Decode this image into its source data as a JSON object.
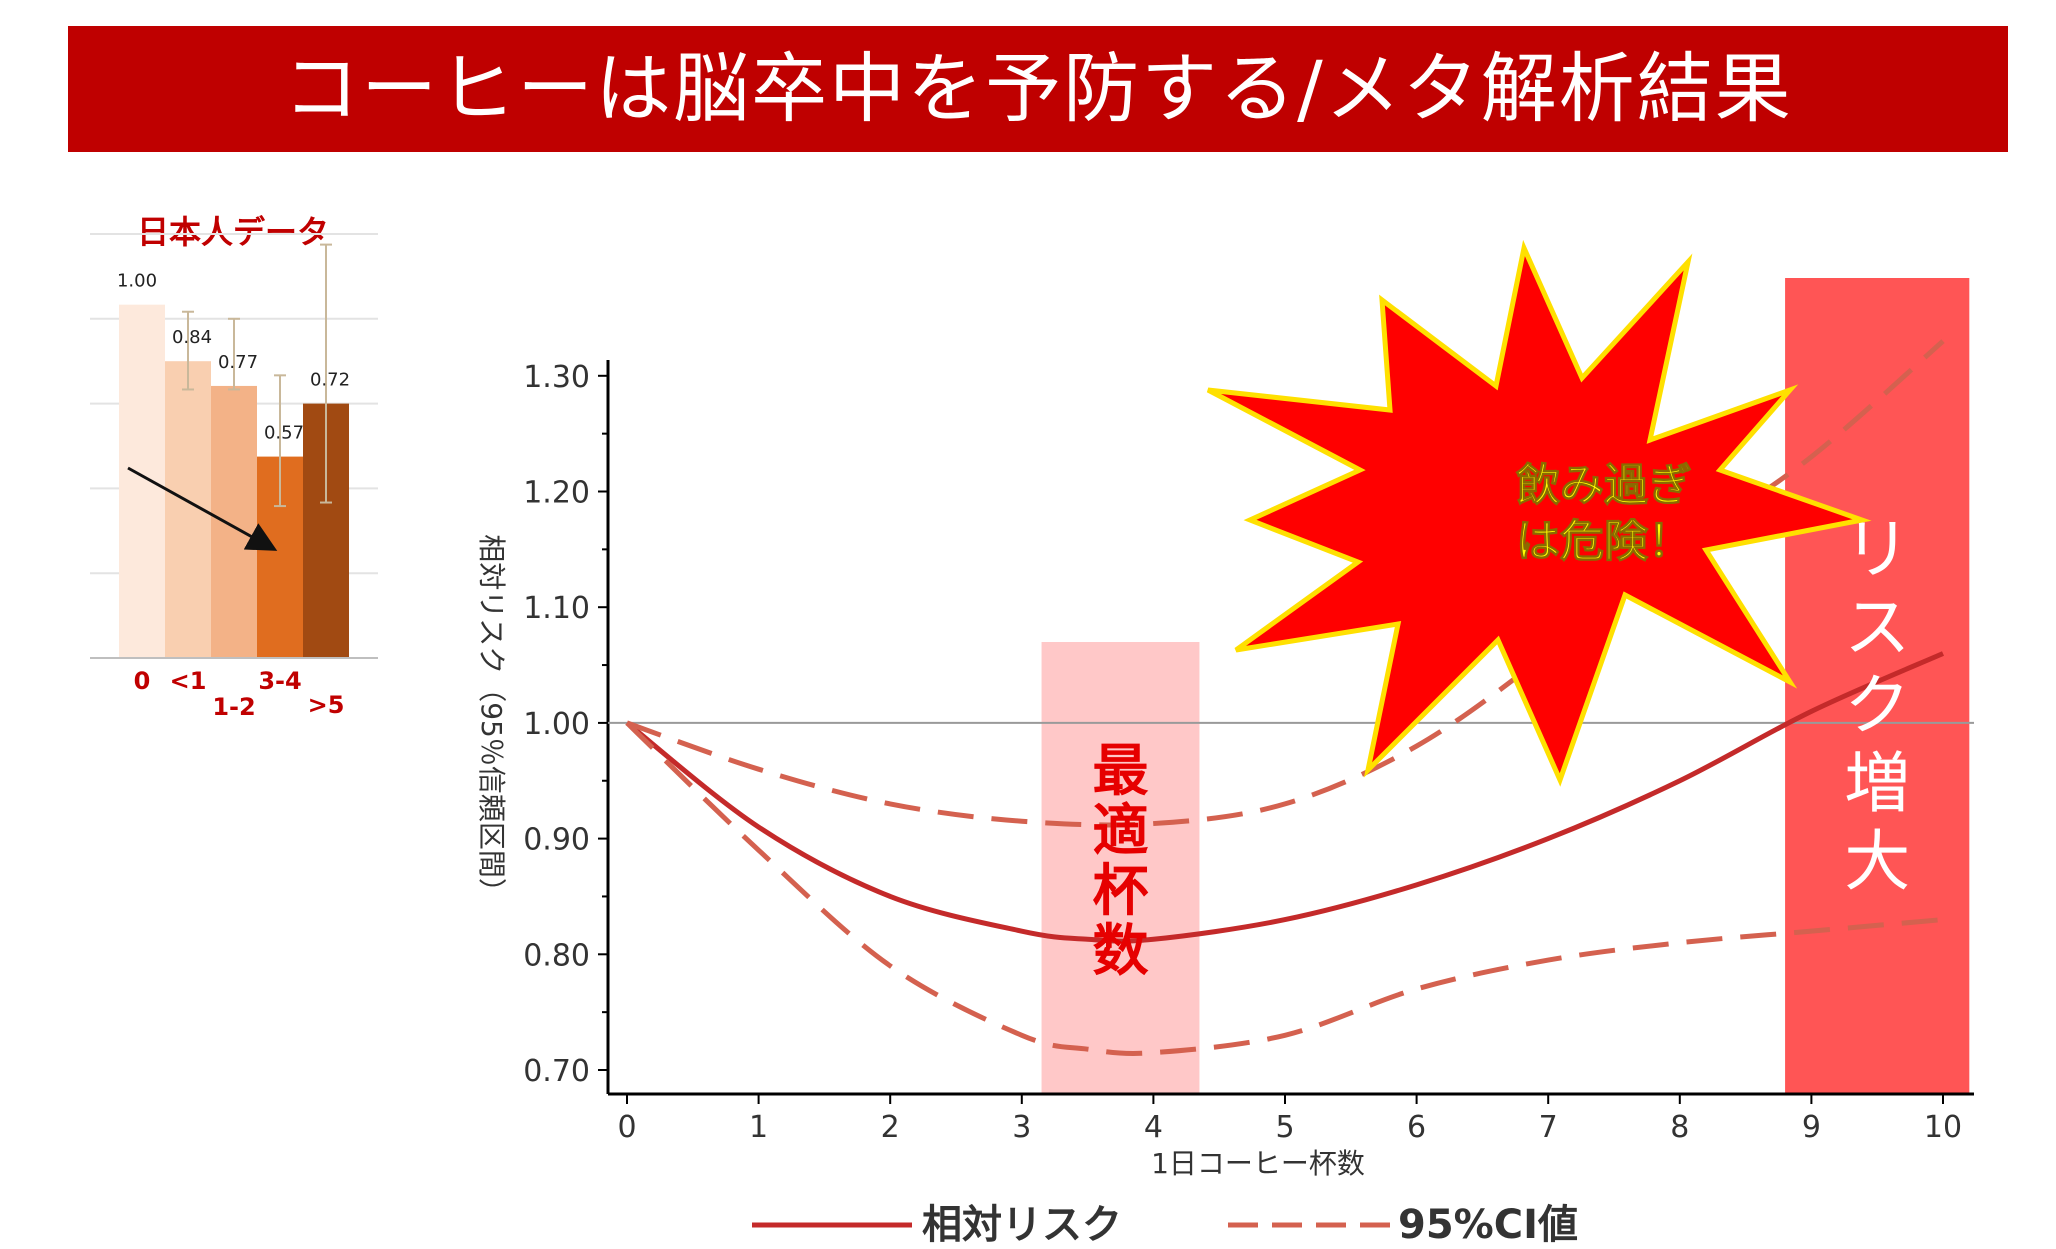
{
  "title": "コーヒーは脳卒中を予防する/メタ解析結果",
  "colors": {
    "banner": "#bf0000",
    "relative_risk_line": "#c42a2a",
    "ci_line": "#d4614f",
    "optimal_band": "#ffc8c8",
    "risk_band": "#ff5555",
    "burst_fill": "#ff0000",
    "burst_text": "#ffff00"
  },
  "chart_data": [
    {
      "type": "bar",
      "title": "日本人データ",
      "categories": [
        "0",
        "<1",
        "1-2",
        "3-4",
        ">5"
      ],
      "values": [
        1.0,
        0.84,
        0.77,
        0.57,
        0.72
      ],
      "value_labels": [
        "1.00",
        "0.84",
        "0.77",
        "0.57",
        "0.72"
      ],
      "error_bars": [
        [
          1.0,
          1.0
        ],
        [
          0.76,
          0.98
        ],
        [
          0.76,
          0.96
        ],
        [
          0.43,
          0.8
        ],
        [
          0.44,
          1.17
        ]
      ],
      "bar_colors": [
        "#fde9dc",
        "#f9cfb0",
        "#f3b287",
        "#e06d1f",
        "#a14a12"
      ],
      "ylim": [
        0,
        1.2
      ],
      "grid": true,
      "trend_arrow": {
        "from_category": "0",
        "to_category": "3-4"
      }
    },
    {
      "type": "line",
      "xlabel": "1日コーヒー杯数",
      "ylabel": "相対リスク（95％信頼区間）",
      "xlim": [
        0,
        10
      ],
      "ylim": [
        0.7,
        1.3
      ],
      "x_ticks": [
        "0",
        "1",
        "2",
        "3",
        "4",
        "5",
        "6",
        "7",
        "8",
        "9",
        "10"
      ],
      "y_ticks": [
        "0.70",
        "0.80",
        "0.90",
        "1.00",
        "1.10",
        "1.20",
        "1.30"
      ],
      "reference_line": 1.0,
      "series": [
        {
          "name": "相対リスク",
          "style": "solid",
          "x": [
            0,
            1,
            2,
            3,
            3.5,
            4,
            5,
            6,
            7,
            8,
            9,
            10
          ],
          "y": [
            1.0,
            0.91,
            0.85,
            0.82,
            0.813,
            0.813,
            0.83,
            0.86,
            0.9,
            0.95,
            1.01,
            1.06
          ]
        },
        {
          "name": "95%CI値",
          "style": "dashed",
          "x": [
            0,
            1,
            2,
            3,
            4,
            5,
            6,
            7,
            8,
            9,
            10
          ],
          "y": [
            1.0,
            0.96,
            0.93,
            0.915,
            0.913,
            0.93,
            0.98,
            1.06,
            1.15,
            1.23,
            1.33
          ]
        },
        {
          "style": "dashed",
          "x": [
            0,
            1,
            2,
            3,
            3.5,
            4,
            5,
            6,
            7,
            8,
            9,
            10
          ],
          "y": [
            1.0,
            0.89,
            0.79,
            0.73,
            0.718,
            0.715,
            0.73,
            0.77,
            0.795,
            0.81,
            0.82,
            0.83
          ]
        }
      ],
      "bands": [
        {
          "x_start": 3.15,
          "x_end": 4.35,
          "label": "最適杯数"
        },
        {
          "x_start": 8.8,
          "x_end": 10.2,
          "label": "リスク増大"
        }
      ],
      "callout": "飲み過ぎは危険！",
      "callout_lines": [
        "飲み過ぎ",
        "は危険！"
      ]
    }
  ]
}
